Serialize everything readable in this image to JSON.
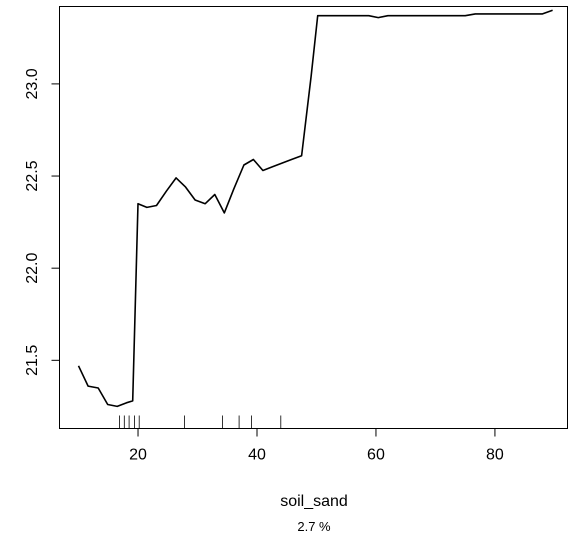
{
  "chart_data": {
    "type": "line",
    "title": "",
    "xlabel": "soil_sand",
    "ylabel": "",
    "note": "2.7 %",
    "xlim": [
      6.8,
      92.2
    ],
    "ylim": [
      21.13,
      23.42
    ],
    "xticks": [
      20,
      40,
      60,
      80
    ],
    "yticks": [
      21.5,
      22.0,
      22.5,
      23.0
    ],
    "xtick_labels": [
      "20",
      "40",
      "60",
      "80"
    ],
    "ytick_labels": [
      "21.5",
      "22.0",
      "22.5",
      "23.0"
    ],
    "grid": false,
    "rug": [
      16.9,
      17.7,
      18.5,
      19.4,
      20.2,
      27.8,
      34.2,
      37.0,
      39.1,
      44.0
    ],
    "series": [
      {
        "x": [
          10.0,
          11.6,
          13.3,
          14.9,
          16.5,
          18.1,
          19.1,
          20.0,
          21.5,
          23.1,
          24.8,
          26.4,
          28.0,
          29.6,
          31.3,
          32.9,
          34.5,
          36.1,
          37.8,
          39.4,
          41.0,
          42.6,
          44.2,
          45.8,
          47.5,
          49.1,
          50.2,
          52.3,
          54.0,
          55.6,
          57.2,
          58.8,
          60.4,
          62.0,
          63.7,
          65.3,
          66.9,
          68.6,
          70.2,
          71.8,
          73.4,
          75.0,
          76.7,
          78.3,
          79.9,
          81.5,
          83.1,
          84.8,
          86.4,
          88.0,
          89.7
        ],
        "y": [
          21.47,
          21.36,
          21.35,
          21.26,
          21.25,
          21.27,
          21.28,
          22.35,
          22.33,
          22.34,
          22.42,
          22.49,
          22.44,
          22.37,
          22.35,
          22.4,
          22.3,
          22.43,
          22.56,
          22.59,
          22.53,
          22.55,
          22.57,
          22.59,
          22.61,
          23.04,
          23.37,
          23.37,
          23.37,
          23.37,
          23.37,
          23.37,
          23.36,
          23.37,
          23.37,
          23.37,
          23.37,
          23.37,
          23.37,
          23.37,
          23.37,
          23.37,
          23.38,
          23.38,
          23.38,
          23.38,
          23.38,
          23.38,
          23.38,
          23.38,
          23.4
        ]
      }
    ]
  }
}
